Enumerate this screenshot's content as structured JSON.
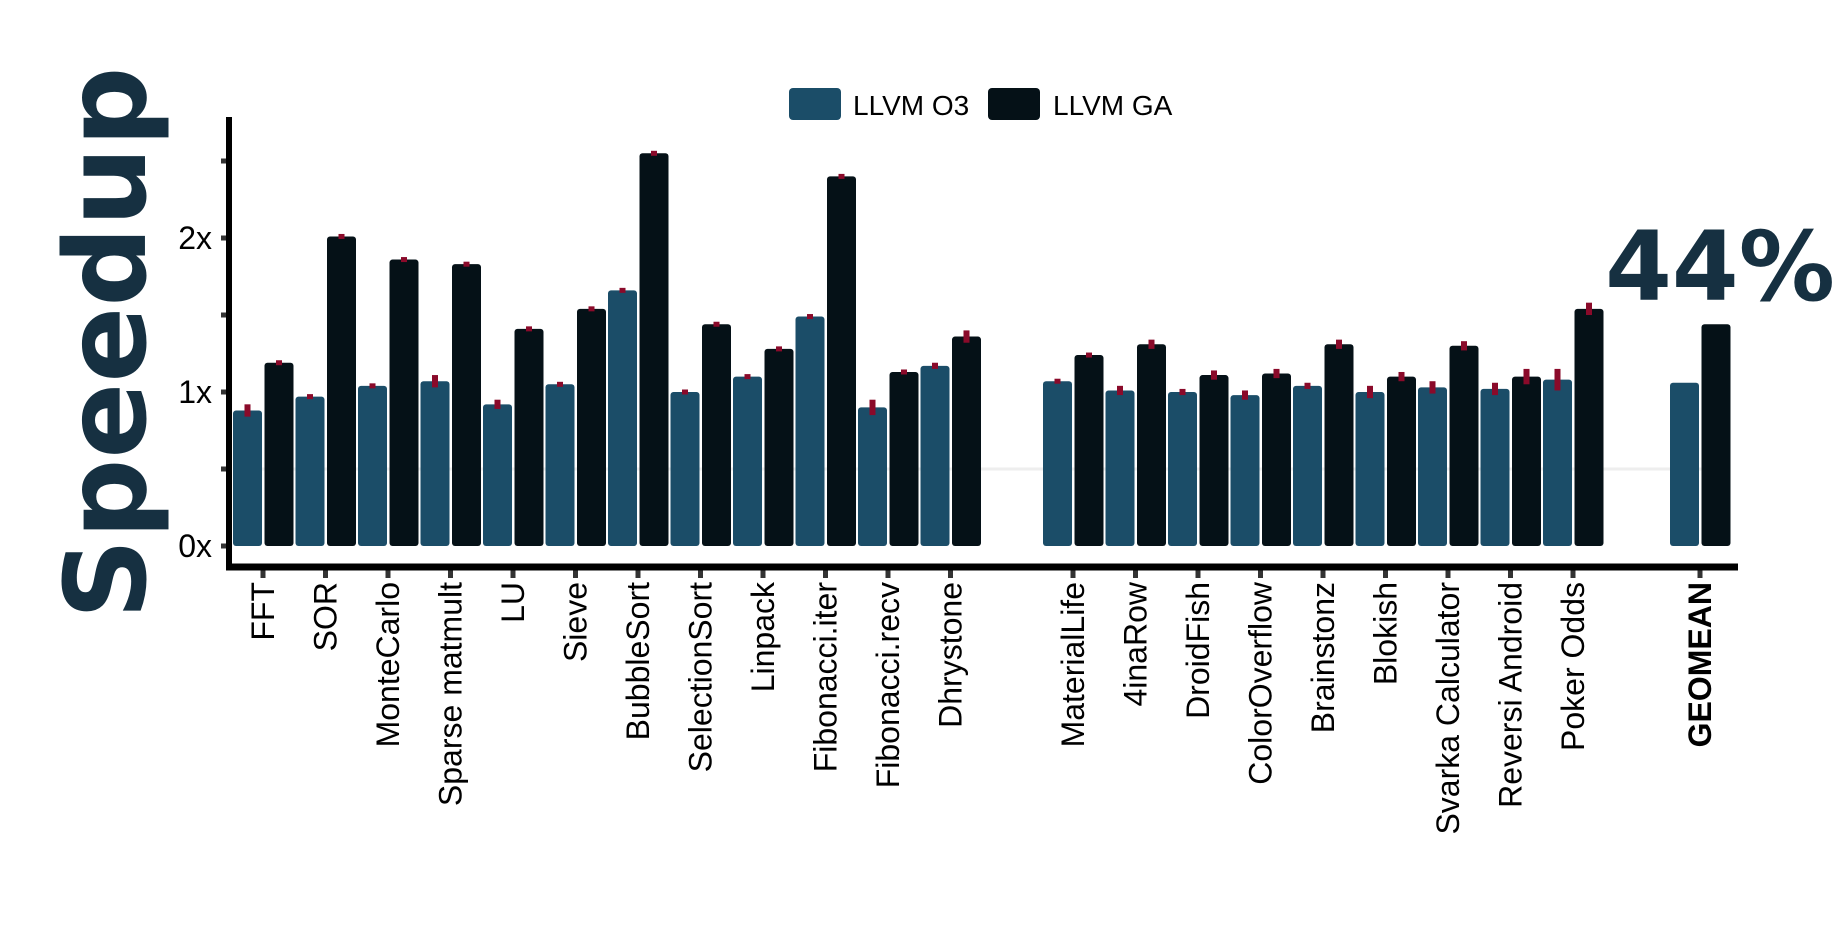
{
  "chart_data": {
    "type": "bar",
    "title": "",
    "ylabel": "Speedup",
    "xlabel": "",
    "ylim": [
      0,
      2.7
    ],
    "yticks": [
      {
        "value": 0,
        "label": "0x"
      },
      {
        "value": 1,
        "label": "1x"
      },
      {
        "value": 2,
        "label": "2x"
      }
    ],
    "legend": {
      "placement": "top-center"
    },
    "colors": {
      "LLVM O3": "#1b4d68",
      "LLVM GA": "#051117",
      "error_bar": "#8a0a2a",
      "annotation": "#163041"
    },
    "groups": [
      {
        "categories": [
          "FFT",
          "SOR",
          "MonteCarlo",
          "Sparse matmult",
          "LU",
          "Sieve",
          "BubbleSort",
          "SelectionSort",
          "Linpack",
          "Fibonacci.iter",
          "Fibonacci.recv",
          "Dhrystone"
        ]
      },
      {
        "categories": [
          "MaterialLife",
          "4inaRow",
          "DroidFish",
          "ColorOverflow",
          "Brainstonz",
          "Blokish",
          "Svarka Calculator",
          "Reversi Android",
          "Poker Odds"
        ]
      },
      {
        "categories": [
          "GEOMEAN"
        ],
        "bold": true
      }
    ],
    "series": [
      {
        "name": "LLVM O3",
        "values": [
          0.88,
          0.97,
          1.04,
          1.07,
          0.92,
          1.05,
          1.66,
          1.0,
          1.1,
          1.49,
          0.9,
          1.17,
          1.07,
          1.01,
          1.0,
          0.98,
          1.04,
          1.0,
          1.03,
          1.02,
          1.08,
          1.06
        ],
        "errors": [
          0.04,
          0.01,
          0.01,
          0.04,
          0.03,
          0.01,
          0.01,
          0.01,
          0.01,
          0.01,
          0.05,
          0.02,
          0.01,
          0.03,
          0.02,
          0.03,
          0.02,
          0.04,
          0.04,
          0.04,
          0.07,
          0
        ]
      },
      {
        "name": "LLVM GA",
        "values": [
          1.19,
          2.01,
          1.86,
          1.83,
          1.41,
          1.54,
          2.55,
          1.44,
          1.28,
          2.4,
          1.13,
          1.36,
          1.24,
          1.31,
          1.11,
          1.12,
          1.31,
          1.1,
          1.3,
          1.1,
          1.54,
          1.44
        ],
        "errors": [
          0.01,
          0.01,
          0.01,
          0.01,
          0.01,
          0.01,
          0.01,
          0.01,
          0.01,
          0.01,
          0.01,
          0.04,
          0.01,
          0.03,
          0.03,
          0.03,
          0.03,
          0.03,
          0.03,
          0.05,
          0.04,
          0
        ]
      }
    ],
    "annotations": [
      {
        "text": "44%",
        "near": "GEOMEAN"
      }
    ]
  }
}
